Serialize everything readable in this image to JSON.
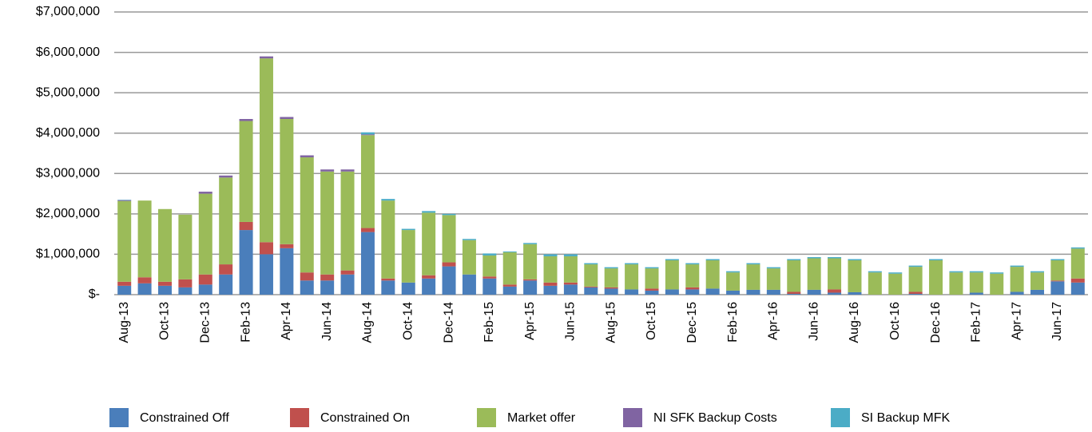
{
  "chart_data": {
    "type": "stacked_bar",
    "categories": [
      "Aug-13",
      null,
      "Oct-13",
      null,
      "Dec-13",
      null,
      "Feb-13",
      null,
      "Apr-14",
      null,
      "Jun-14",
      null,
      "Aug-14",
      null,
      "Oct-14",
      null,
      "Dec-14",
      null,
      "Feb-15",
      null,
      "Apr-15",
      null,
      "Jun-15",
      null,
      "Aug-15",
      null,
      "Oct-15",
      null,
      "Dec-15",
      null,
      "Feb-16",
      null,
      "Apr-16",
      null,
      "Jun-16",
      null,
      "Aug-16",
      null,
      "Oct-16",
      null,
      "Dec-16",
      null,
      "Feb-17",
      null,
      "Apr-17",
      null,
      "Jun-17",
      null
    ],
    "series": [
      {
        "name": "Constrained Off",
        "color": "#4a7ebb",
        "values": [
          220000,
          280000,
          220000,
          180000,
          250000,
          500000,
          1600000,
          1000000,
          1150000,
          350000,
          350000,
          500000,
          1550000,
          350000,
          300000,
          400000,
          700000,
          500000,
          400000,
          200000,
          350000,
          220000,
          250000,
          180000,
          150000,
          130000,
          100000,
          130000,
          130000,
          150000,
          100000,
          120000,
          120000,
          20000,
          120000,
          50000,
          60000,
          0,
          0,
          20000,
          0,
          0,
          50000,
          0,
          70000,
          120000,
          330000,
          300000
        ]
      },
      {
        "name": "Constrained On",
        "color": "#c0504d",
        "values": [
          100000,
          150000,
          100000,
          200000,
          250000,
          250000,
          200000,
          300000,
          100000,
          200000,
          150000,
          100000,
          100000,
          50000,
          0,
          80000,
          100000,
          0,
          50000,
          50000,
          30000,
          80000,
          50000,
          20000,
          30000,
          0,
          50000,
          0,
          50000,
          0,
          0,
          0,
          0,
          50000,
          0,
          80000,
          0,
          0,
          0,
          50000,
          0,
          0,
          0,
          0,
          0,
          0,
          20000,
          100000
        ]
      },
      {
        "name": "Market offer",
        "color": "#9bbb59",
        "values": [
          2000000,
          1900000,
          1800000,
          1600000,
          2000000,
          2150000,
          2500000,
          4550000,
          3100000,
          2850000,
          2550000,
          2450000,
          2300000,
          1930000,
          1300000,
          1550000,
          1170000,
          850000,
          520000,
          800000,
          870000,
          650000,
          650000,
          550000,
          470000,
          620000,
          500000,
          720000,
          570000,
          700000,
          450000,
          630000,
          530000,
          780000,
          780000,
          770000,
          790000,
          550000,
          520000,
          620000,
          850000,
          550000,
          500000,
          520000,
          620000,
          430000,
          500000,
          740000
        ]
      },
      {
        "name": "NI SFK Backup Costs",
        "color": "#8064a2",
        "values": [
          20000,
          0,
          0,
          0,
          50000,
          50000,
          50000,
          50000,
          50000,
          50000,
          50000,
          50000,
          20000,
          0,
          0,
          0,
          0,
          0,
          0,
          0,
          0,
          0,
          0,
          0,
          0,
          0,
          0,
          0,
          0,
          0,
          0,
          0,
          0,
          0,
          0,
          0,
          0,
          0,
          0,
          0,
          0,
          0,
          0,
          0,
          0,
          0,
          0,
          0
        ]
      },
      {
        "name": "SI Backup MFK",
        "color": "#4bacc6",
        "values": [
          10000,
          0,
          0,
          0,
          0,
          0,
          0,
          0,
          0,
          0,
          0,
          0,
          50000,
          40000,
          30000,
          40000,
          30000,
          30000,
          50000,
          20000,
          30000,
          50000,
          50000,
          30000,
          30000,
          30000,
          30000,
          30000,
          30000,
          30000,
          30000,
          30000,
          30000,
          30000,
          30000,
          30000,
          30000,
          30000,
          30000,
          30000,
          30000,
          30000,
          30000,
          30000,
          30000,
          30000,
          30000,
          30000
        ]
      }
    ],
    "ylim": [
      0,
      7000000
    ],
    "yticks": [
      {
        "value": 0,
        "label": "$-"
      },
      {
        "value": 1000000,
        "label": "$1,000,000"
      },
      {
        "value": 2000000,
        "label": "$2,000,000"
      },
      {
        "value": 3000000,
        "label": "$3,000,000"
      },
      {
        "value": 4000000,
        "label": "$4,000,000"
      },
      {
        "value": 5000000,
        "label": "$5,000,000"
      },
      {
        "value": 6000000,
        "label": "$6,000,000"
      },
      {
        "value": 7000000,
        "label": "$7,000,000"
      }
    ],
    "grid": true,
    "legend": "bottom"
  }
}
